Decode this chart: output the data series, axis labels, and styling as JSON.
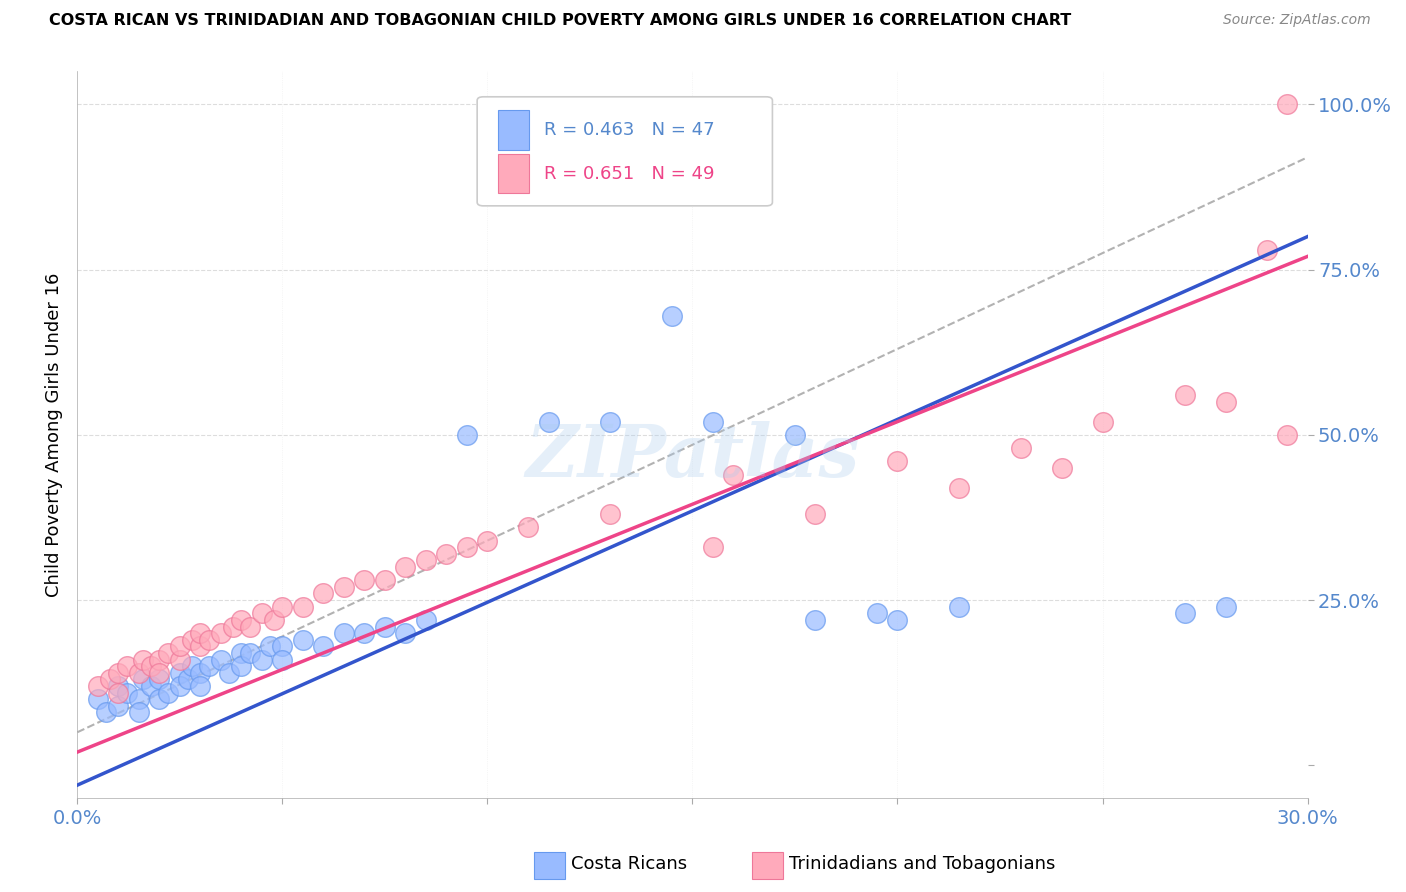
{
  "title": "COSTA RICAN VS TRINIDADIAN AND TOBAGONIAN CHILD POVERTY AMONG GIRLS UNDER 16 CORRELATION CHART",
  "source": "Source: ZipAtlas.com",
  "xmin": 0.0,
  "xmax": 0.3,
  "ymin": -0.05,
  "ymax": 1.05,
  "blue_color": "#99BBFF",
  "blue_edge_color": "#6699EE",
  "pink_color": "#FFAABB",
  "pink_edge_color": "#EE7799",
  "blue_line_color": "#3355CC",
  "pink_line_color": "#EE4488",
  "dash_line_color": "#AAAAAA",
  "blue_label": "Costa Ricans",
  "pink_label": "Trinidadians and Tobagonians",
  "legend_R_blue": "R = 0.463",
  "legend_N_blue": "N = 47",
  "legend_R_pink": "R = 0.651",
  "legend_N_pink": "N = 49",
  "watermark": "ZIPatlas",
  "ytick_color": "#5588CC",
  "xtick_color": "#5588CC",
  "ylabel": "Child Poverty Among Girls Under 16",
  "blue_scatter": [
    [
      0.005,
      0.1
    ],
    [
      0.007,
      0.08
    ],
    [
      0.01,
      0.12
    ],
    [
      0.01,
      0.09
    ],
    [
      0.012,
      0.11
    ],
    [
      0.015,
      0.1
    ],
    [
      0.015,
      0.08
    ],
    [
      0.016,
      0.13
    ],
    [
      0.018,
      0.12
    ],
    [
      0.02,
      0.13
    ],
    [
      0.02,
      0.1
    ],
    [
      0.022,
      0.11
    ],
    [
      0.025,
      0.14
    ],
    [
      0.025,
      0.12
    ],
    [
      0.027,
      0.13
    ],
    [
      0.028,
      0.15
    ],
    [
      0.03,
      0.14
    ],
    [
      0.03,
      0.12
    ],
    [
      0.032,
      0.15
    ],
    [
      0.035,
      0.16
    ],
    [
      0.037,
      0.14
    ],
    [
      0.04,
      0.17
    ],
    [
      0.04,
      0.15
    ],
    [
      0.042,
      0.17
    ],
    [
      0.045,
      0.16
    ],
    [
      0.047,
      0.18
    ],
    [
      0.05,
      0.18
    ],
    [
      0.05,
      0.16
    ],
    [
      0.055,
      0.19
    ],
    [
      0.06,
      0.18
    ],
    [
      0.065,
      0.2
    ],
    [
      0.07,
      0.2
    ],
    [
      0.075,
      0.21
    ],
    [
      0.08,
      0.2
    ],
    [
      0.085,
      0.22
    ],
    [
      0.095,
      0.5
    ],
    [
      0.115,
      0.52
    ],
    [
      0.13,
      0.52
    ],
    [
      0.155,
      0.52
    ],
    [
      0.175,
      0.5
    ],
    [
      0.18,
      0.22
    ],
    [
      0.195,
      0.23
    ],
    [
      0.2,
      0.22
    ],
    [
      0.215,
      0.24
    ],
    [
      0.27,
      0.23
    ],
    [
      0.28,
      0.24
    ],
    [
      0.145,
      0.68
    ]
  ],
  "pink_scatter": [
    [
      0.005,
      0.12
    ],
    [
      0.008,
      0.13
    ],
    [
      0.01,
      0.14
    ],
    [
      0.01,
      0.11
    ],
    [
      0.012,
      0.15
    ],
    [
      0.015,
      0.14
    ],
    [
      0.016,
      0.16
    ],
    [
      0.018,
      0.15
    ],
    [
      0.02,
      0.16
    ],
    [
      0.02,
      0.14
    ],
    [
      0.022,
      0.17
    ],
    [
      0.025,
      0.16
    ],
    [
      0.025,
      0.18
    ],
    [
      0.028,
      0.19
    ],
    [
      0.03,
      0.18
    ],
    [
      0.03,
      0.2
    ],
    [
      0.032,
      0.19
    ],
    [
      0.035,
      0.2
    ],
    [
      0.038,
      0.21
    ],
    [
      0.04,
      0.22
    ],
    [
      0.042,
      0.21
    ],
    [
      0.045,
      0.23
    ],
    [
      0.048,
      0.22
    ],
    [
      0.05,
      0.24
    ],
    [
      0.055,
      0.24
    ],
    [
      0.06,
      0.26
    ],
    [
      0.065,
      0.27
    ],
    [
      0.07,
      0.28
    ],
    [
      0.075,
      0.28
    ],
    [
      0.08,
      0.3
    ],
    [
      0.085,
      0.31
    ],
    [
      0.09,
      0.32
    ],
    [
      0.095,
      0.33
    ],
    [
      0.1,
      0.34
    ],
    [
      0.11,
      0.36
    ],
    [
      0.13,
      0.38
    ],
    [
      0.155,
      0.33
    ],
    [
      0.18,
      0.38
    ],
    [
      0.215,
      0.42
    ],
    [
      0.24,
      0.45
    ],
    [
      0.28,
      0.55
    ],
    [
      0.295,
      0.5
    ],
    [
      0.295,
      1.0
    ],
    [
      0.16,
      0.44
    ],
    [
      0.2,
      0.46
    ],
    [
      0.23,
      0.48
    ],
    [
      0.25,
      0.52
    ],
    [
      0.27,
      0.56
    ],
    [
      0.29,
      0.78
    ]
  ]
}
